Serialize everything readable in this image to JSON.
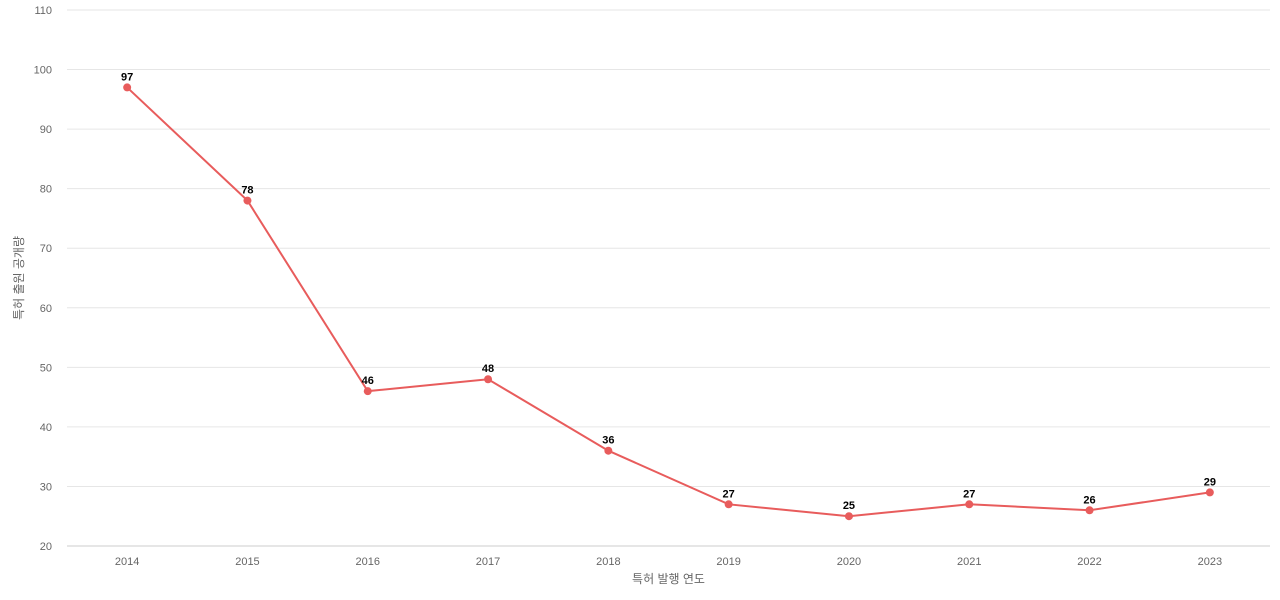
{
  "chart_data": {
    "type": "line",
    "x": [
      "2014",
      "2015",
      "2016",
      "2017",
      "2018",
      "2019",
      "2020",
      "2021",
      "2022",
      "2023"
    ],
    "series": [
      {
        "values": [
          97,
          78,
          46,
          48,
          36,
          27,
          25,
          27,
          26,
          29
        ],
        "color": "#e85c5c"
      }
    ],
    "xlabel": "특허 발행 연도",
    "ylabel": "특허 출원 공개량",
    "ylim": [
      20,
      110
    ],
    "yticks": [
      20,
      30,
      40,
      50,
      60,
      70,
      80,
      90,
      100,
      110
    ],
    "grid": true,
    "data_labels": true
  }
}
